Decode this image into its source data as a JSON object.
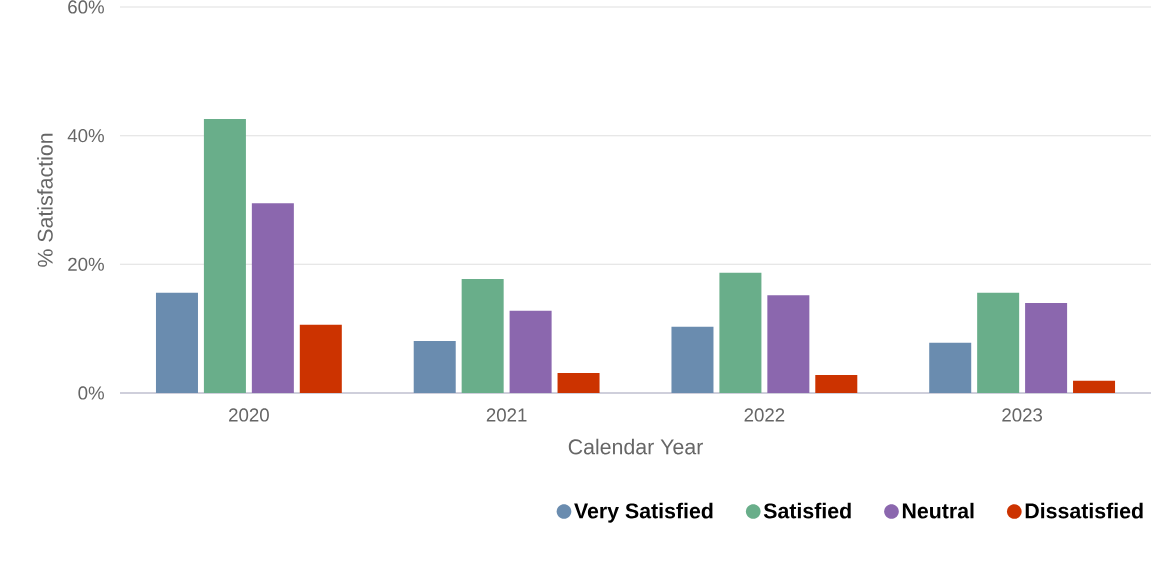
{
  "chart_data": {
    "type": "bar",
    "xlabel": "Calendar Year",
    "ylabel": "% Satisfaction",
    "categories": [
      "2020",
      "2021",
      "2022",
      "2023"
    ],
    "series": [
      {
        "name": "Very Satisfied",
        "color": "#6a8caf",
        "values": [
          15.6,
          8.1,
          10.3,
          7.8
        ]
      },
      {
        "name": "Satisfied",
        "color": "#69ae8a",
        "values": [
          42.6,
          17.7,
          18.7,
          15.6
        ]
      },
      {
        "name": "Neutral",
        "color": "#8b67ae",
        "values": [
          29.5,
          12.8,
          15.2,
          14.0
        ]
      },
      {
        "name": "Dissatisfied",
        "color": "#cc3300",
        "values": [
          10.6,
          3.1,
          2.8,
          1.9
        ]
      }
    ],
    "ylim": [
      0,
      60
    ],
    "yticks": [
      {
        "value": 0,
        "label": "0%"
      },
      {
        "value": 20,
        "label": "20%"
      },
      {
        "value": 40,
        "label": "40%"
      },
      {
        "value": 60,
        "label": "60%"
      }
    ],
    "grid": "y",
    "legend": "bottom"
  }
}
